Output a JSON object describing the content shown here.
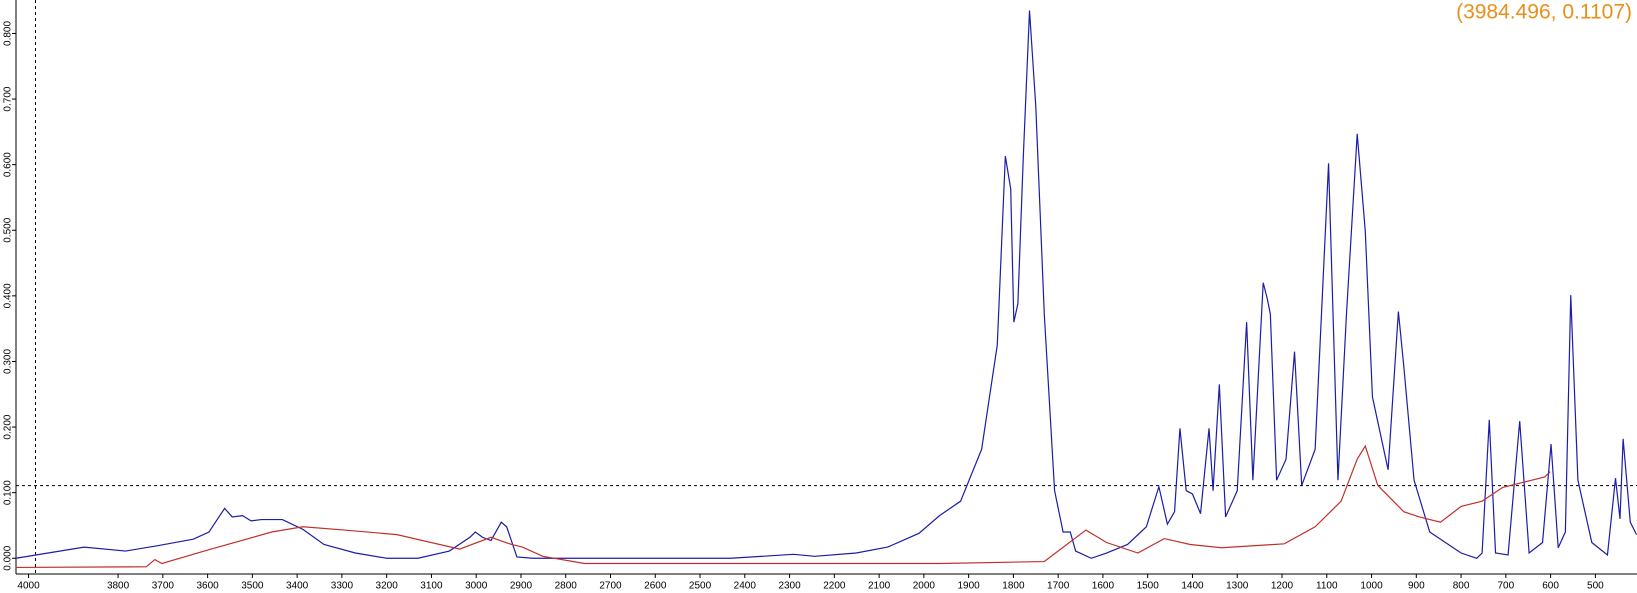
{
  "chart_data": {
    "type": "line",
    "annotation": "(3984.496, 0.1107)",
    "crosshair": {
      "x": 3984.496,
      "y": 0.1107
    },
    "xlim": [
      4028,
      407
    ],
    "ylim": [
      -0.024,
      0.851
    ],
    "xticks": [
      4000,
      3800,
      3700,
      3600,
      3500,
      3400,
      3300,
      3200,
      3100,
      3000,
      2900,
      2800,
      2700,
      2600,
      2500,
      2400,
      2300,
      2200,
      2100,
      2000,
      1900,
      1800,
      1700,
      1600,
      1500,
      1400,
      1300,
      1200,
      1100,
      1000,
      900,
      800,
      700,
      600,
      500
    ],
    "yticks": [
      {
        "value": 0,
        "label": "0.000"
      },
      {
        "value": 0.1,
        "label": "0.100"
      },
      {
        "value": 0.2,
        "label": "0.200"
      },
      {
        "value": 0.3,
        "label": "0.300"
      },
      {
        "value": 0.4,
        "label": "0.400"
      },
      {
        "value": 0.5,
        "label": "0.500"
      },
      {
        "value": 0.6,
        "label": "0.600"
      },
      {
        "value": 0.7,
        "label": "0.700"
      },
      {
        "value": 0.8,
        "label": "0.800"
      }
    ],
    "series": [
      {
        "color": "#1c1ca8",
        "x": [
          4028,
          3876,
          3783,
          3713,
          3632,
          3597,
          3562,
          3545,
          3522,
          3503,
          3480,
          3433,
          3387,
          3340,
          3270,
          3200,
          3130,
          3060,
          3014,
          3002,
          2986,
          2967,
          2944,
          2932,
          2909,
          2874,
          2664,
          2431,
          2291,
          2244,
          2151,
          2081,
          2011,
          1965,
          1918,
          1871,
          1836,
          1818,
          1806,
          1799,
          1790,
          1778,
          1764,
          1750,
          1731,
          1708,
          1689,
          1673,
          1661,
          1626,
          1592,
          1545,
          1503,
          1475,
          1456,
          1440,
          1428,
          1414,
          1400,
          1382,
          1363,
          1354,
          1340,
          1326,
          1300,
          1279,
          1265,
          1242,
          1233,
          1226,
          1212,
          1191,
          1172,
          1156,
          1126,
          1096,
          1075,
          1056,
          1032,
          1014,
          998,
          963,
          940,
          928,
          905,
          870,
          800,
          765,
          753,
          737,
          723,
          695,
          669,
          648,
          618,
          599,
          583,
          567,
          555,
          539,
          508,
          473,
          455,
          445,
          438,
          422,
          408
        ],
        "values": [
          0,
          0.017,
          0.011,
          0.019,
          0.029,
          0.04,
          0.076,
          0.063,
          0.065,
          0.057,
          0.059,
          0.059,
          0.044,
          0.021,
          0.008,
          0,
          0,
          0.011,
          0.032,
          0.04,
          0.032,
          0.027,
          0.055,
          0.048,
          0.002,
          0,
          0,
          0,
          0.006,
          0.003,
          0.008,
          0.017,
          0.038,
          0.065,
          0.087,
          0.166,
          0.325,
          0.613,
          0.563,
          0.36,
          0.388,
          0.61,
          0.835,
          0.689,
          0.372,
          0.103,
          0.04,
          0.04,
          0.011,
          0,
          0.008,
          0.021,
          0.048,
          0.109,
          0.052,
          0.071,
          0.198,
          0.103,
          0.098,
          0.068,
          0.198,
          0.103,
          0.265,
          0.063,
          0.103,
          0.36,
          0.119,
          0.42,
          0.396,
          0.372,
          0.119,
          0.151,
          0.315,
          0.111,
          0.166,
          0.602,
          0.119,
          0.372,
          0.647,
          0.499,
          0.246,
          0.135,
          0.376,
          0.293,
          0.119,
          0.04,
          0.008,
          0,
          0.008,
          0.211,
          0.008,
          0.005,
          0.209,
          0.008,
          0.024,
          0.174,
          0.016,
          0.04,
          0.401,
          0.119,
          0.024,
          0.005,
          0.122,
          0.06,
          0.182,
          0.055,
          0.036
        ]
      },
      {
        "color": "#c0302a",
        "x": [
          4028,
          3737,
          3718,
          3702,
          3597,
          3457,
          3387,
          3294,
          3177,
          3037,
          2967,
          2921,
          2897,
          2851,
          2758,
          2431,
          1965,
          1731,
          1638,
          1592,
          1522,
          1463,
          1405,
          1335,
          1195,
          1126,
          1068,
          1032,
          1014,
          986,
          928,
          893,
          846,
          800,
          753,
          707,
          660,
          613,
          601
        ],
        "values": [
          -0.014,
          -0.013,
          -0.002,
          -0.008,
          0.013,
          0.04,
          0.048,
          0.043,
          0.036,
          0.014,
          0.032,
          0.021,
          0.017,
          0.003,
          -0.008,
          -0.008,
          -0.008,
          -0.005,
          0.043,
          0.024,
          0.008,
          0.03,
          0.021,
          0.016,
          0.022,
          0.048,
          0.087,
          0.151,
          0.171,
          0.111,
          0.071,
          0.063,
          0.055,
          0.079,
          0.087,
          0.108,
          0.116,
          0.124,
          0.132
        ]
      }
    ]
  }
}
